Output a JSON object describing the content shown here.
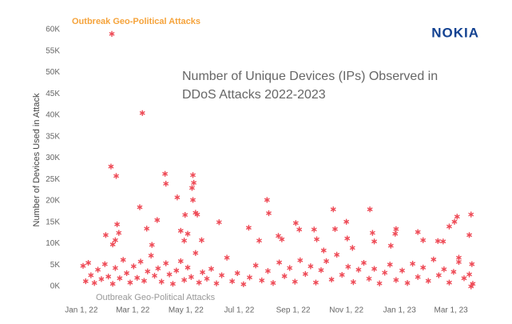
{
  "chart_data": {
    "type": "scatter",
    "title": "Number of Unique Devices (IPs) Observed in",
    "subtitle": "DDoS Attacks 2022-2023",
    "y_label": "Number of Devices Used in Attack",
    "logo": "NOKIA",
    "annotations": [
      "Outbreak Geo-Political Attacks",
      "Outbreak Geo-Political Attacks"
    ],
    "color": "#ee4a56",
    "grid": false,
    "xlim": [
      "2021-12-12",
      "2023-04-07"
    ],
    "ylim": [
      0,
      60000
    ],
    "xticks": [
      {
        "value": "2022-01-01",
        "label": "Jan 1, 22"
      },
      {
        "value": "2022-03-01",
        "label": "Mar 1, 22"
      },
      {
        "value": "2022-05-01",
        "label": "May 1, 22"
      },
      {
        "value": "2022-07-01",
        "label": "Jul 1, 22"
      },
      {
        "value": "2022-09-01",
        "label": "Sep 1, 22"
      },
      {
        "value": "2022-11-01",
        "label": "Nov 1, 22"
      },
      {
        "value": "2023-01-01",
        "label": "Jan 1, 23"
      },
      {
        "value": "2023-03-01",
        "label": "Mar 1, 23"
      }
    ],
    "yticks": [
      {
        "value": 0,
        "label": "0K"
      },
      {
        "value": 5000,
        "label": "5K"
      },
      {
        "value": 10000,
        "label": "10K"
      },
      {
        "value": 15000,
        "label": "15K"
      },
      {
        "value": 20000,
        "label": "20K"
      },
      {
        "value": 25000,
        "label": "25K"
      },
      {
        "value": 30000,
        "label": "30K"
      },
      {
        "value": 35000,
        "label": "35K"
      },
      {
        "value": 40000,
        "label": "40K"
      },
      {
        "value": 45000,
        "label": "45K"
      },
      {
        "value": 50000,
        "label": "50K"
      },
      {
        "value": 55000,
        "label": "55K"
      },
      {
        "value": 60000,
        "label": "60K"
      }
    ],
    "x": [
      "2022-02-05",
      "2022-03-12",
      "2022-02-04",
      "2022-02-10",
      "2022-03-09",
      "2022-02-11",
      "2022-02-13",
      "2022-02-09",
      "2022-02-06",
      "2022-01-29",
      "2022-03-17",
      "2022-03-29",
      "2022-03-23",
      "2022-04-07",
      "2022-04-08",
      "2022-04-21",
      "2022-05-09",
      "2022-05-10",
      "2022-05-08",
      "2022-05-09",
      "2022-05-12",
      "2022-05-14",
      "2022-04-30",
      "2022-04-25",
      "2022-05-03",
      "2022-04-29",
      "2022-05-19",
      "2022-06-08",
      "2022-07-12",
      "2022-08-02",
      "2022-08-04",
      "2022-07-24",
      "2022-08-15",
      "2022-08-19",
      "2022-09-04",
      "2022-09-08",
      "2022-09-25",
      "2022-09-28",
      "2022-10-06",
      "2022-10-17",
      "2022-10-19",
      "2022-11-01",
      "2022-11-02",
      "2022-11-08",
      "2022-11-28",
      "2022-12-01",
      "2022-12-03",
      "2022-12-22",
      "2022-12-27",
      "2022-12-28",
      "2023-01-22",
      "2023-01-28",
      "2023-02-14",
      "2023-02-20",
      "2023-02-27",
      "2023-03-05",
      "2023-03-08",
      "2023-03-10",
      "2023-03-24",
      "2023-03-22",
      "2023-03-25",
      "2023-03-24",
      "2022-01-03",
      "2022-01-06",
      "2022-01-09",
      "2022-01-12",
      "2022-01-16",
      "2022-01-20",
      "2022-01-24",
      "2022-01-28",
      "2022-02-01",
      "2022-02-06",
      "2022-02-09",
      "2022-02-14",
      "2022-02-18",
      "2022-02-22",
      "2022-02-26",
      "2022-03-02",
      "2022-03-06",
      "2022-03-10",
      "2022-03-14",
      "2022-03-18",
      "2022-03-22",
      "2022-03-26",
      "2022-03-30",
      "2022-04-03",
      "2022-04-08",
      "2022-04-12",
      "2022-04-16",
      "2022-04-20",
      "2022-04-25",
      "2022-04-29",
      "2022-05-03",
      "2022-05-07",
      "2022-05-12",
      "2022-05-16",
      "2022-05-20",
      "2022-05-25",
      "2022-05-30",
      "2022-06-05",
      "2022-06-11",
      "2022-06-17",
      "2022-06-23",
      "2022-06-29",
      "2022-07-06",
      "2022-07-13",
      "2022-07-20",
      "2022-07-27",
      "2022-08-03",
      "2022-08-09",
      "2022-08-16",
      "2022-08-22",
      "2022-08-28",
      "2022-09-03",
      "2022-09-09",
      "2022-09-15",
      "2022-09-21",
      "2022-09-27",
      "2022-10-03",
      "2022-10-09",
      "2022-10-15",
      "2022-10-21",
      "2022-10-27",
      "2022-11-03",
      "2022-11-09",
      "2022-11-15",
      "2022-11-21",
      "2022-11-27",
      "2022-12-03",
      "2022-12-09",
      "2022-12-15",
      "2022-12-21",
      "2022-12-28",
      "2023-01-04",
      "2023-01-10",
      "2023-01-16",
      "2023-01-22",
      "2023-01-28",
      "2023-02-03",
      "2023-02-09",
      "2023-02-15",
      "2023-02-21",
      "2023-02-27",
      "2023-03-04",
      "2023-03-10",
      "2023-03-16",
      "2023-03-22",
      "2023-03-26"
    ],
    "values": [
      59000,
      40500,
      28000,
      25800,
      18500,
      14500,
      12500,
      10800,
      9800,
      12000,
      13500,
      15500,
      9700,
      26300,
      24000,
      20800,
      26000,
      24200,
      23000,
      20200,
      17200,
      16800,
      16700,
      13000,
      12300,
      10700,
      10800,
      15000,
      13700,
      20200,
      17100,
      10700,
      11800,
      11000,
      14800,
      13300,
      13300,
      11000,
      8400,
      18000,
      13400,
      15100,
      11200,
      9000,
      18000,
      12500,
      10500,
      9500,
      12300,
      13400,
      12700,
      10800,
      10600,
      10500,
      14000,
      15100,
      16300,
      6700,
      16800,
      12000,
      5200,
      0,
      4800,
      1200,
      5500,
      2600,
      800,
      3900,
      1700,
      5200,
      2300,
      600,
      4300,
      1900,
      6200,
      3100,
      900,
      4700,
      2000,
      5800,
      1300,
      3500,
      7200,
      2500,
      4200,
      1100,
      5400,
      2800,
      600,
      3700,
      5900,
      1500,
      4400,
      2200,
      7800,
      900,
      3300,
      1800,
      4100,
      700,
      2600,
      6700,
      1200,
      3100,
      500,
      2100,
      4900,
      1400,
      3600,
      800,
      5600,
      2400,
      4300,
      1100,
      6100,
      2900,
      4700,
      900,
      3800,
      5900,
      1600,
      7400,
      2700,
      4600,
      1000,
      3900,
      5500,
      1800,
      4100,
      700,
      3200,
      5100,
      1500,
      3700,
      800,
      5300,
      2200,
      4400,
      1300,
      6300,
      2600,
      4000,
      900,
      3400,
      5700,
      1900,
      2800,
      600
    ]
  }
}
